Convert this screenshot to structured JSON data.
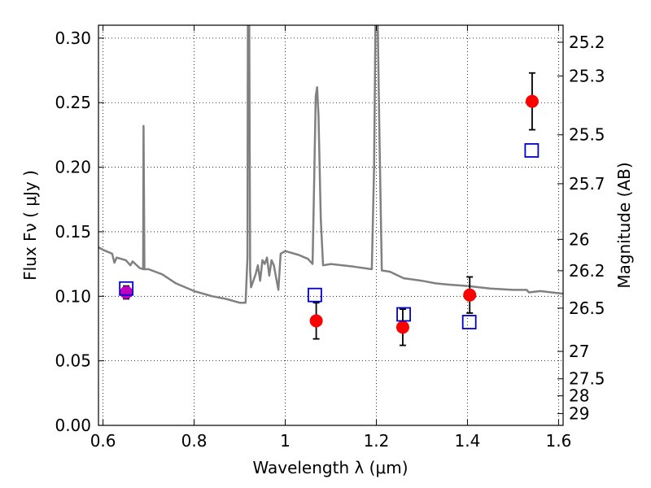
{
  "chart_data": {
    "type": "scatter",
    "title": "",
    "xlabel": "Wavelength  λ (μm)",
    "ylabel_left": "Flux  Fν  ( μJy )",
    "ylabel_right": "Magnitude (AB)",
    "xlim": [
      0.59,
      1.61
    ],
    "ylim": [
      0.0,
      0.31
    ],
    "x_ticks": [
      0.6,
      0.8,
      1.0,
      1.2,
      1.4,
      1.6
    ],
    "x_tick_labels": [
      "0.6",
      "0.8",
      "1",
      "1.2",
      "1.4",
      "1.6"
    ],
    "y_ticks": [
      0.0,
      0.05,
      0.1,
      0.15,
      0.2,
      0.25,
      0.3
    ],
    "y_tick_labels": [
      "0.00",
      "0.05",
      "0.10",
      "0.15",
      "0.20",
      "0.25",
      "0.30"
    ],
    "right_ticks": [
      {
        "flux": 0.2968,
        "label": "25.2"
      },
      {
        "flux": 0.2707,
        "label": "25.3"
      },
      {
        "flux": 0.2251,
        "label": "25.5"
      },
      {
        "flux": 0.1872,
        "label": "25.7"
      },
      {
        "flux": 0.1441,
        "label": "26"
      },
      {
        "flux": 0.1198,
        "label": "26.2"
      },
      {
        "flux": 0.0908,
        "label": "26.5"
      },
      {
        "flux": 0.0573,
        "label": "27"
      },
      {
        "flux": 0.0361,
        "label": "27.5"
      },
      {
        "flux": 0.0229,
        "label": "28"
      },
      {
        "flux": 0.0091,
        "label": "29"
      }
    ],
    "grid": true,
    "series": [
      {
        "kind": "sed-model-line",
        "color": "#808080",
        "points": [
          [
            0.59,
            0.138
          ],
          [
            0.6,
            0.136
          ],
          [
            0.62,
            0.133
          ],
          [
            0.625,
            0.126
          ],
          [
            0.63,
            0.13
          ],
          [
            0.65,
            0.128
          ],
          [
            0.66,
            0.124
          ],
          [
            0.665,
            0.127
          ],
          [
            0.68,
            0.122
          ],
          [
            0.688,
            0.121
          ],
          [
            0.689,
            0.232
          ],
          [
            0.691,
            0.121
          ],
          [
            0.7,
            0.121
          ],
          [
            0.73,
            0.117
          ],
          [
            0.76,
            0.11
          ],
          [
            0.8,
            0.104
          ],
          [
            0.84,
            0.1
          ],
          [
            0.87,
            0.098
          ],
          [
            0.9,
            0.095
          ],
          [
            0.913,
            0.095
          ],
          [
            0.917,
            0.13
          ],
          [
            0.918,
            0.31
          ],
          [
            0.921,
            0.31
          ],
          [
            0.923,
            0.12
          ],
          [
            0.925,
            0.107
          ],
          [
            0.935,
            0.117
          ],
          [
            0.94,
            0.124
          ],
          [
            0.945,
            0.112
          ],
          [
            0.95,
            0.128
          ],
          [
            0.955,
            0.125
          ],
          [
            0.96,
            0.13
          ],
          [
            0.965,
            0.116
          ],
          [
            0.97,
            0.128
          ],
          [
            0.975,
            0.124
          ],
          [
            0.985,
            0.105
          ],
          [
            0.99,
            0.133
          ],
          [
            1.0,
            0.135
          ],
          [
            1.03,
            0.132
          ],
          [
            1.05,
            0.129
          ],
          [
            1.06,
            0.125
          ],
          [
            1.063,
            0.18
          ],
          [
            1.067,
            0.255
          ],
          [
            1.07,
            0.262
          ],
          [
            1.073,
            0.24
          ],
          [
            1.078,
            0.16
          ],
          [
            1.083,
            0.124
          ],
          [
            1.1,
            0.125
          ],
          [
            1.15,
            0.123
          ],
          [
            1.19,
            0.121
          ],
          [
            1.195,
            0.2
          ],
          [
            1.198,
            0.31
          ],
          [
            1.203,
            0.31
          ],
          [
            1.207,
            0.22
          ],
          [
            1.212,
            0.12
          ],
          [
            1.23,
            0.119
          ],
          [
            1.26,
            0.114
          ],
          [
            1.3,
            0.112
          ],
          [
            1.33,
            0.11
          ],
          [
            1.36,
            0.109
          ],
          [
            1.4,
            0.108
          ],
          [
            1.45,
            0.106
          ],
          [
            1.5,
            0.105
          ],
          [
            1.53,
            0.105
          ],
          [
            1.535,
            0.103
          ],
          [
            1.56,
            0.104
          ],
          [
            1.61,
            0.102
          ]
        ]
      },
      {
        "kind": "observed",
        "color": "#ff0000",
        "points": [
          {
            "x": 1.068,
            "y": 0.081,
            "err": 0.014
          },
          {
            "x": 1.258,
            "y": 0.076,
            "err": 0.014
          },
          {
            "x": 1.405,
            "y": 0.101,
            "err": 0.014
          },
          {
            "x": 1.542,
            "y": 0.251,
            "err": 0.022
          }
        ]
      },
      {
        "kind": "observed-magenta",
        "color": "#bf00bf",
        "points": [
          {
            "x": 0.651,
            "y": 0.103,
            "err": 0.005
          }
        ]
      },
      {
        "kind": "model-photometry",
        "color": "#0000cc",
        "points": [
          {
            "x": 0.651,
            "y": 0.106
          },
          {
            "x": 1.065,
            "y": 0.101
          },
          {
            "x": 1.26,
            "y": 0.086
          },
          {
            "x": 1.404,
            "y": 0.08
          },
          {
            "x": 1.541,
            "y": 0.213
          }
        ]
      }
    ]
  }
}
